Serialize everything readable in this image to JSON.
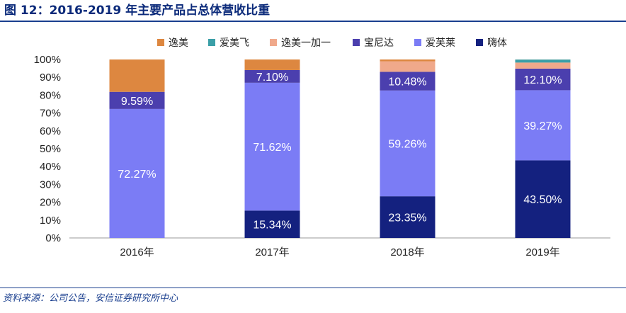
{
  "title": "图 12：2016-2019 年主要产品占总体营收比重",
  "source": "资料来源：公司公告，安信证券研究所中心",
  "chart_data": {
    "type": "bar",
    "stacked": true,
    "categories": [
      "2016年",
      "2017年",
      "2018年",
      "2019年"
    ],
    "ylim": [
      0,
      100
    ],
    "yticks": [
      "0%",
      "10%",
      "20%",
      "30%",
      "40%",
      "50%",
      "60%",
      "70%",
      "80%",
      "90%",
      "100%"
    ],
    "legend_position": "top",
    "series": [
      {
        "name": "嗨体",
        "color": "#14217f",
        "values": [
          0,
          15.34,
          23.35,
          43.5
        ],
        "labels": [
          "",
          "15.34%",
          "23.35%",
          "43.50%"
        ]
      },
      {
        "name": "爱芙莱",
        "color": "#7b7cf5",
        "values": [
          72.27,
          71.62,
          59.26,
          39.27
        ],
        "labels": [
          "72.27%",
          "71.62%",
          "59.26%",
          "39.27%"
        ]
      },
      {
        "name": "宝尼达",
        "color": "#4b3fae",
        "values": [
          9.59,
          7.1,
          10.48,
          12.1
        ],
        "labels": [
          "9.59%",
          "7.10%",
          "10.48%",
          "12.10%"
        ]
      },
      {
        "name": "逸美一加一",
        "color": "#f0a98b",
        "values": [
          0,
          0,
          5.9,
          3.4
        ],
        "labels": [
          "",
          "",
          "",
          ""
        ]
      },
      {
        "name": "爱美飞",
        "color": "#3b9fa7",
        "values": [
          0,
          0,
          0,
          1.7
        ],
        "labels": [
          "",
          "",
          "",
          ""
        ]
      },
      {
        "name": "逸美",
        "color": "#dd8740",
        "values": [
          18.14,
          5.94,
          1.01,
          0.03
        ],
        "labels": [
          "",
          "",
          "",
          ""
        ]
      }
    ],
    "legend_order": [
      "逸美",
      "爱美飞",
      "逸美一加一",
      "宝尼达",
      "爱芙莱",
      "嗨体"
    ],
    "label_color": "#ffffff"
  }
}
